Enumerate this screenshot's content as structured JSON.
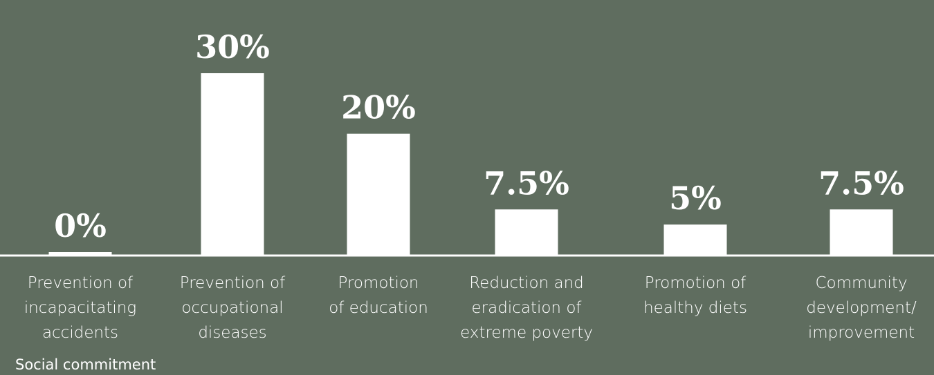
{
  "colors": {
    "background": "#5f6d5f",
    "bar": "#ffffff",
    "text": "#ffffff"
  },
  "footnote": "Social commitment",
  "chart_data": {
    "type": "bar",
    "categories": [
      [
        "Prevention of",
        "incapacitating",
        "accidents"
      ],
      [
        "Prevention of",
        "occupational",
        "diseases"
      ],
      [
        "Promotion",
        "of education"
      ],
      [
        "Reduction and",
        "eradication of",
        "extreme poverty"
      ],
      [
        "Promotion of",
        "healthy diets"
      ],
      [
        "Community",
        "development/",
        "improvement"
      ]
    ],
    "values": [
      0,
      30,
      20,
      7.5,
      5,
      7.5
    ],
    "value_labels": [
      "0%",
      "30%",
      "20%",
      "7.5%",
      "5%",
      "7.5%"
    ],
    "unit": "%",
    "title": "",
    "xlabel": "",
    "ylabel": "",
    "ylim": [
      0,
      30
    ],
    "grid": false,
    "legend": "none"
  }
}
